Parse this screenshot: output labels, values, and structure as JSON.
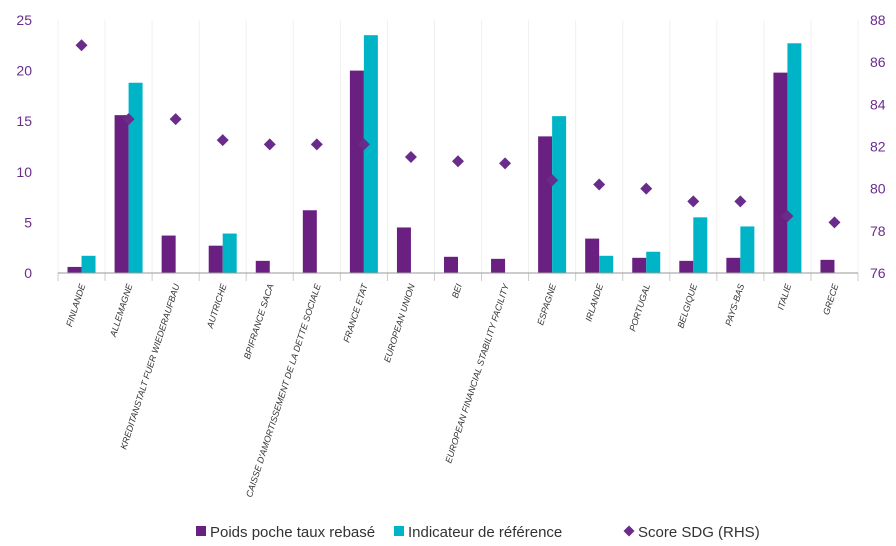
{
  "chart_data": {
    "type": "bar",
    "categories": [
      "FINLANDE",
      "ALLEMAGNE",
      "KREDITANSTALT FUER WIEDERAUFBAU",
      "AUTRICHE",
      "BPIFRANCE SACA",
      "CAISSE D'AMORTISSEMENT DE LA DETTE SOCIALE",
      "FRANCE ETAT",
      "EUROPEAN UNION",
      "BEI",
      "EUROPEAN FINANCIAL STABILITY FACILITY",
      "ESPAGNE",
      "IRLANDE",
      "PORTUGAL",
      "BELGIQUE",
      "PAYS-BAS",
      "ITALIE",
      "GRECE"
    ],
    "series": [
      {
        "name": "Poids poche taux rebasé",
        "kind": "bar",
        "axis": "left",
        "color": "#6a2080",
        "values": [
          0.6,
          15.6,
          3.7,
          2.7,
          1.2,
          6.2,
          20.0,
          4.5,
          1.6,
          1.4,
          13.5,
          3.4,
          1.5,
          1.2,
          1.5,
          19.8,
          1.3
        ]
      },
      {
        "name": "Indicateur de référence",
        "kind": "bar",
        "axis": "left",
        "color": "#00b4c8",
        "values": [
          1.7,
          18.8,
          null,
          3.9,
          null,
          null,
          23.5,
          null,
          null,
          null,
          15.5,
          1.7,
          2.1,
          5.5,
          4.6,
          22.7,
          null
        ]
      },
      {
        "name": "Score SDG (RHS)",
        "kind": "scatter",
        "axis": "right",
        "marker": "diamond",
        "color": "#6a2c8b",
        "values": [
          86.8,
          83.3,
          83.3,
          82.3,
          82.1,
          82.1,
          82.1,
          81.5,
          81.3,
          81.2,
          80.4,
          80.2,
          80.0,
          79.4,
          79.4,
          78.7,
          78.4
        ]
      }
    ],
    "y_left": {
      "ticks": [
        "0",
        "5",
        "10",
        "15",
        "20",
        "25"
      ],
      "range": [
        0,
        25
      ]
    },
    "y_right": {
      "ticks": [
        "76",
        "78",
        "80",
        "82",
        "84",
        "86",
        "88"
      ],
      "range": [
        76,
        88
      ]
    },
    "grid": false,
    "legend_position": "bottom"
  }
}
